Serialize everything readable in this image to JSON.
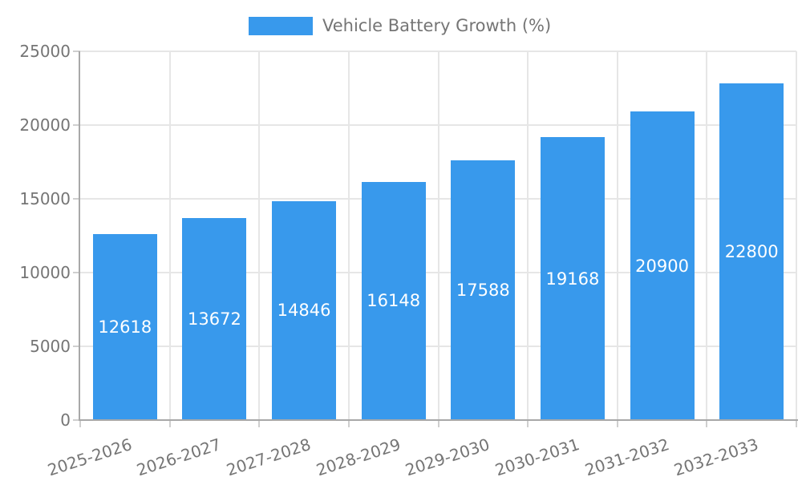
{
  "chart_data": {
    "type": "bar",
    "title": "Vehicle Battery Growth (%)",
    "legend_position": "top",
    "categories": [
      "2025-2026",
      "2026-2027",
      "2027-2028",
      "2028-2029",
      "2029-2030",
      "2030-2031",
      "2031-2032",
      "2032-2033"
    ],
    "values": [
      12618,
      13672,
      14846,
      16148,
      17588,
      19168,
      20900,
      22800
    ],
    "value_labels_inside_bars": true,
    "xlabel": "",
    "ylabel": "",
    "ylim": [
      0,
      25000
    ],
    "yticks": [
      0,
      5000,
      10000,
      15000,
      20000,
      25000
    ],
    "grid": true,
    "x_tick_rotation_deg": -18,
    "colors": {
      "bar": "#3899EC",
      "value_label": "#FFFFFF",
      "axis_text": "#757575",
      "legend_text": "#757575",
      "grid_line": "#E6E6E6",
      "tick_line": "#CFCFCF",
      "axis_line": "#A8A8A8",
      "background": "#FFFFFF"
    }
  }
}
